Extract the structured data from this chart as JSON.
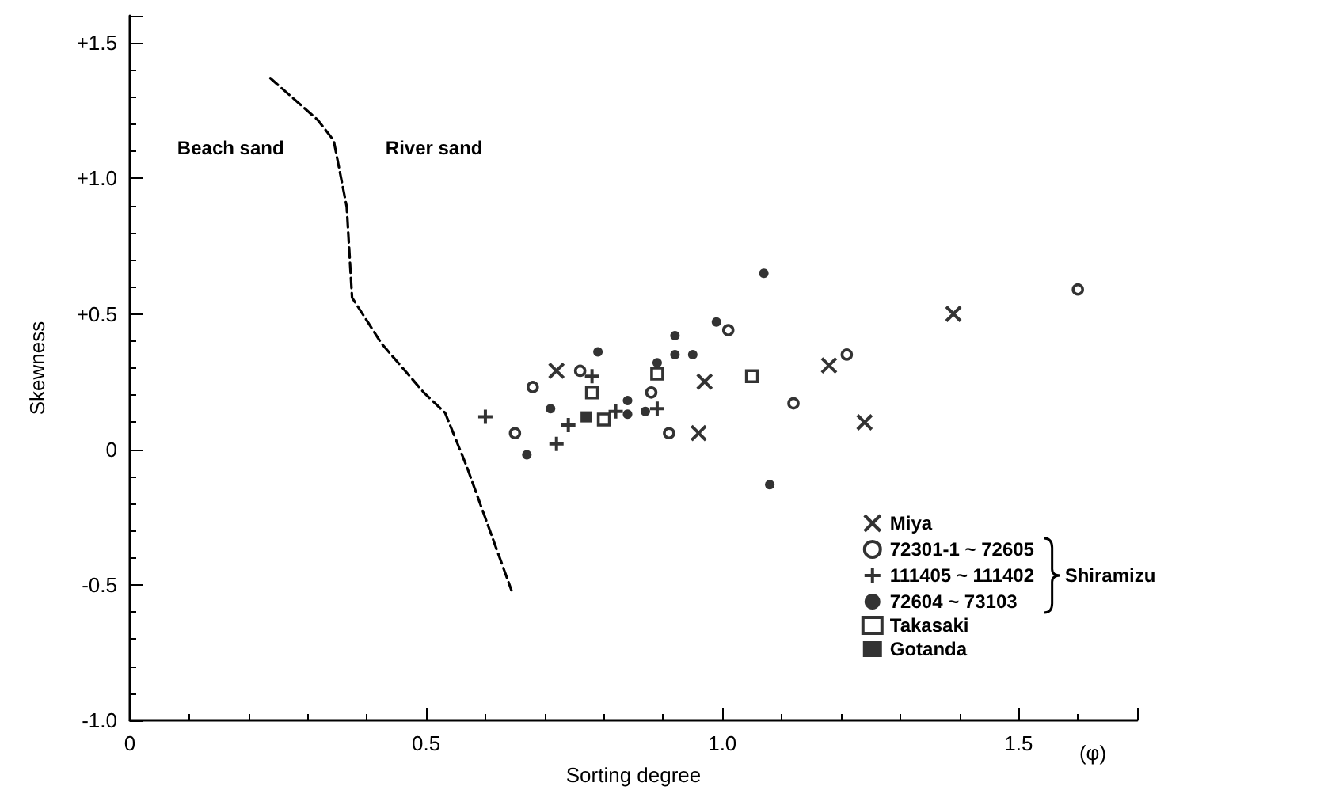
{
  "chart_data": {
    "type": "scatter",
    "xlabel": "Sorting degree",
    "ylabel": "Skewness",
    "xlim": [
      0,
      1.7
    ],
    "xticks": [
      0,
      0.5,
      {
        "value": 1.0,
        "label": "1.0"
      },
      1.5
    ],
    "ylim": [
      -1,
      1.6
    ],
    "yticks": [
      {
        "value": -1,
        "label": "-1.0"
      },
      {
        "value": -0.5,
        "label": "-0.5"
      },
      0,
      {
        "value": 0.5,
        "label": "+0.5"
      },
      {
        "value": 1,
        "label": "+1.0"
      },
      {
        "value": 1.5,
        "label": "+1.5"
      }
    ],
    "grid": false,
    "legend": "bottom right",
    "annotations": [
      "Beach sand",
      "River sand",
      "Shiramizu",
      "(φ)"
    ],
    "series": [
      {
        "type": "line",
        "line_style": "dashed",
        "marker": "none",
        "color": "#000000",
        "x": [
          0.237,
          0.317,
          0.344,
          0.366,
          0.375,
          0.425,
          0.496,
          0.532,
          0.568,
          0.644
        ],
        "values": [
          1.37,
          1.216,
          1.14,
          0.895,
          0.56,
          0.39,
          0.21,
          0.135,
          -0.06,
          -0.52
        ]
      },
      {
        "name": "Miya",
        "marker": "cross",
        "color": "#000000",
        "x": [
          0.72,
          0.97,
          0.96,
          1.39,
          1.18,
          1.24
        ],
        "values": [
          0.29,
          0.25,
          0.06,
          0.5,
          0.31,
          0.1
        ]
      },
      {
        "name": "72301-1 ~ 72605",
        "marker": "circle-open",
        "color": "#000000",
        "x": [
          0.68,
          0.65,
          0.76,
          0.88,
          0.91,
          1.01,
          1.12,
          1.21,
          1.6
        ],
        "values": [
          0.23,
          0.06,
          0.29,
          0.21,
          0.06,
          0.44,
          0.17,
          0.35,
          0.59
        ]
      },
      {
        "name": "111405 ~ 111402",
        "marker": "plus",
        "color": "#000000",
        "x": [
          0.6,
          0.72,
          0.74,
          0.78,
          0.82,
          0.89
        ],
        "values": [
          0.12,
          0.02,
          0.09,
          0.27,
          0.14,
          0.15
        ]
      },
      {
        "name": "72604 ~ 73103",
        "marker": "circle",
        "color": "#000000",
        "x": [
          1.07,
          0.99,
          0.92,
          0.79,
          0.89,
          0.92,
          0.95,
          0.71,
          0.67,
          0.84,
          0.84,
          0.87,
          1.08
        ],
        "values": [
          0.65,
          0.47,
          0.42,
          0.36,
          0.32,
          0.35,
          0.35,
          0.15,
          -0.02,
          0.18,
          0.13,
          0.14,
          -0.13
        ]
      },
      {
        "name": "Takasaki",
        "marker": "square-open",
        "color": "#000000",
        "x": [
          0.78,
          0.89,
          1.05,
          0.8
        ],
        "values": [
          0.21,
          0.28,
          0.27,
          0.11
        ]
      },
      {
        "name": "Gotanda",
        "marker": "square",
        "color": "#000000",
        "x": [
          0.77
        ],
        "values": [
          0.12
        ]
      }
    ]
  }
}
